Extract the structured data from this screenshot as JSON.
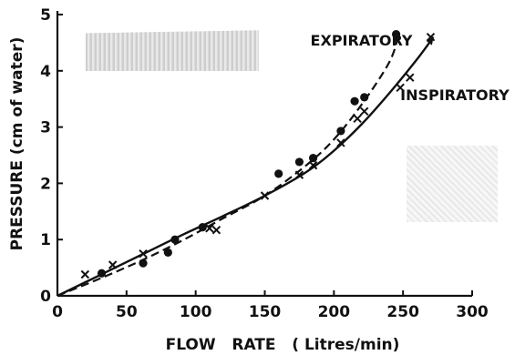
{
  "colors": {
    "ink": "#111111",
    "paper": "#ffffff",
    "smudge": "#9a9a9a"
  },
  "chart_data": {
    "type": "scatter",
    "title": "",
    "xlabel": "FLOW   RATE   ( Litres/min)",
    "ylabel": "PRESSURE  (cm of water)",
    "xlim": [
      0,
      300
    ],
    "ylim": [
      0,
      5
    ],
    "x_ticks": [
      0,
      50,
      100,
      150,
      200,
      250,
      300
    ],
    "y_ticks": [
      0,
      1,
      2,
      3,
      4,
      5
    ],
    "grid": false,
    "series": [
      {
        "name": "EXPIRATORY",
        "marker": "dot",
        "line": "dashed",
        "points": [
          [
            32,
            0.4
          ],
          [
            62,
            0.58
          ],
          [
            80,
            0.77
          ],
          [
            85,
            1.0
          ],
          [
            105,
            1.22
          ],
          [
            160,
            2.17
          ],
          [
            175,
            2.38
          ],
          [
            185,
            2.45
          ],
          [
            205,
            2.93
          ],
          [
            215,
            3.46
          ],
          [
            222,
            3.53
          ],
          [
            245,
            4.65
          ]
        ],
        "fit": [
          [
            0,
            0
          ],
          [
            30,
            0.3
          ],
          [
            60,
            0.62
          ],
          [
            90,
            0.98
          ],
          [
            120,
            1.38
          ],
          [
            150,
            1.78
          ],
          [
            180,
            2.32
          ],
          [
            200,
            2.78
          ],
          [
            220,
            3.4
          ],
          [
            240,
            4.15
          ],
          [
            247,
            4.65
          ]
        ]
      },
      {
        "name": "INSPIRATORY",
        "marker": "cross",
        "line": "solid",
        "points": [
          [
            20,
            0.38
          ],
          [
            40,
            0.55
          ],
          [
            62,
            0.75
          ],
          [
            110,
            1.2
          ],
          [
            115,
            1.17
          ],
          [
            150,
            1.78
          ],
          [
            175,
            2.15
          ],
          [
            185,
            2.32
          ],
          [
            205,
            2.72
          ],
          [
            217,
            3.15
          ],
          [
            222,
            3.28
          ],
          [
            248,
            3.7
          ],
          [
            255,
            3.88
          ],
          [
            270,
            4.6
          ]
        ],
        "fit": [
          [
            0,
            0
          ],
          [
            30,
            0.36
          ],
          [
            60,
            0.72
          ],
          [
            90,
            1.08
          ],
          [
            120,
            1.42
          ],
          [
            150,
            1.78
          ],
          [
            180,
            2.2
          ],
          [
            200,
            2.58
          ],
          [
            220,
            3.05
          ],
          [
            240,
            3.6
          ],
          [
            260,
            4.2
          ],
          [
            272,
            4.6
          ]
        ]
      }
    ]
  }
}
